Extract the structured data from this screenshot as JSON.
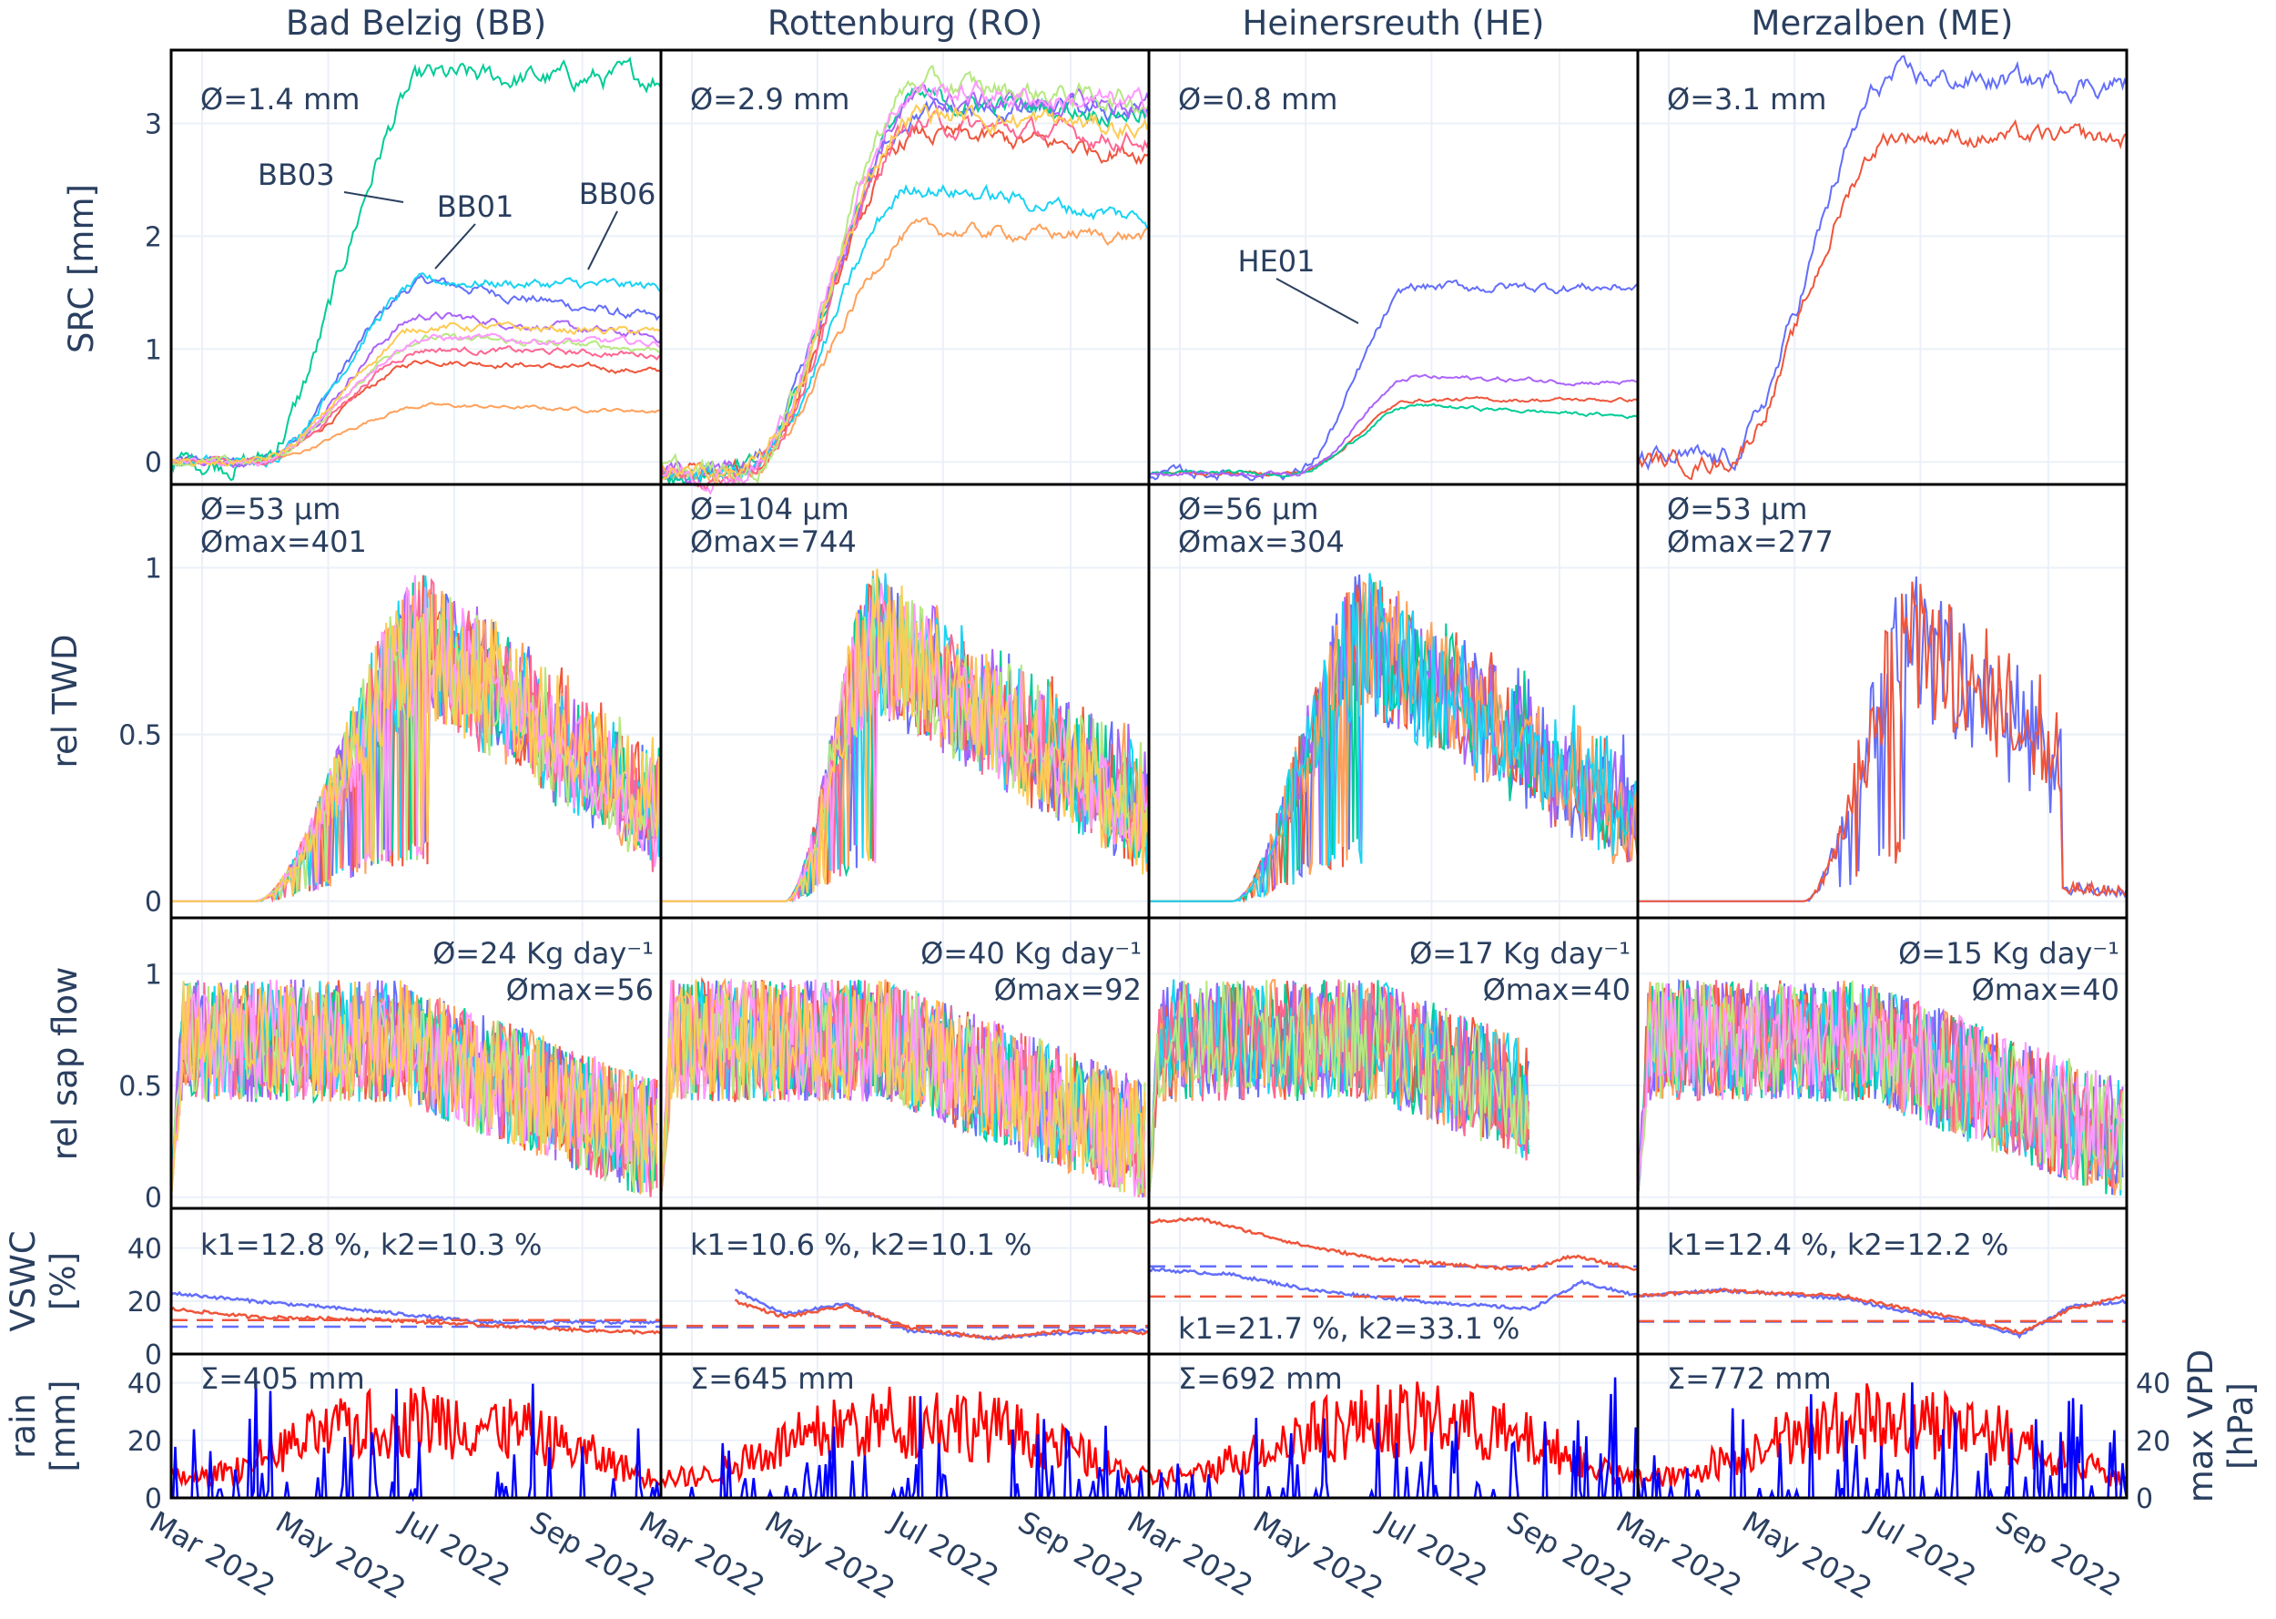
{
  "sites": [
    {
      "code": "BB",
      "title": "Bad Belzig (BB)"
    },
    {
      "code": "RO",
      "title": "Rottenburg (RO)"
    },
    {
      "code": "HE",
      "title": "Heinersreuth (HE)"
    },
    {
      "code": "ME",
      "title": "Merzalben (ME)"
    }
  ],
  "row_labels": {
    "src": [
      "SRC [mm]"
    ],
    "twd": [
      "rel TWD"
    ],
    "sap": [
      "rel sap flow"
    ],
    "vswc": [
      "VSWC",
      "[%]"
    ],
    "rain": [
      "rain",
      "[mm]"
    ],
    "vpd": [
      "max VPD",
      "[hPa]"
    ]
  },
  "annotations": {
    "src": [
      "Ø=1.4 mm",
      "Ø=2.9 mm",
      "Ø=0.8 mm",
      "Ø=3.1 mm"
    ],
    "twd": [
      [
        "Ø=53 µm",
        "Ømax=401"
      ],
      [
        "Ø=104 µm",
        "Ømax=744"
      ],
      [
        "Ø=56 µm",
        "Ømax=304"
      ],
      [
        "Ø=53 µm",
        "Ømax=277"
      ]
    ],
    "sap": [
      [
        "Ø=24 Kg day⁻¹",
        "Ømax=56"
      ],
      [
        "Ø=40 Kg day⁻¹",
        "Ømax=92"
      ],
      [
        "Ø=17 Kg day⁻¹",
        "Ømax=40"
      ],
      [
        "Ø=15 Kg day⁻¹",
        "Ømax=40"
      ]
    ],
    "vswc": [
      "k1=12.8 %, k2=10.3 %",
      "k1=10.6 %, k2=10.1 %",
      "k1=21.7 %, k2=33.1 %",
      "k1=12.4 %, k2=12.2 %"
    ],
    "rain": [
      "Σ=405 mm",
      "Σ=645 mm",
      "Σ=692 mm",
      "Σ=772 mm"
    ],
    "tree_labels": [
      "BB03",
      "BB01",
      "BB06",
      "HE01"
    ]
  },
  "x_ticks": [
    "Mar 2022",
    "May 2022",
    "Jul 2022",
    "Sep 2022"
  ],
  "colors": {
    "palette": [
      "#636efa",
      "#EF553B",
      "#00cc96",
      "#ab63fa",
      "#FFA15A",
      "#19d3f3",
      "#FF6692",
      "#B6E880",
      "#FF97FF",
      "#FECB52"
    ],
    "vswc_k1": "#EF553B",
    "vswc_k2": "#636efa",
    "rain": "#ff0000",
    "vpd": "#0000ff",
    "axis": "#2a3f5f",
    "grid": "#ebf0f8"
  },
  "chart_data": {
    "type": "line",
    "x_range": [
      "2022-02-25",
      "2022-10-20"
    ],
    "rows": [
      {
        "key": "src",
        "ylabel": "SRC [mm]",
        "yticks": [
          0,
          1,
          2,
          3
        ],
        "ylim": [
          -0.2,
          3.65
        ]
      },
      {
        "key": "twd",
        "ylabel": "rel TWD",
        "yticks": [
          0,
          0.5,
          1
        ],
        "ylim": [
          -0.05,
          1.25
        ]
      },
      {
        "key": "sap",
        "ylabel": "rel sap flow",
        "yticks": [
          0,
          0.5,
          1
        ],
        "ylim": [
          -0.05,
          1.25
        ]
      },
      {
        "key": "vswc",
        "ylabel": "VSWC [%]",
        "yticks": [
          0,
          20,
          40
        ],
        "ylim": [
          0,
          55
        ]
      },
      {
        "key": "rain",
        "ylabel": "rain [mm]",
        "y2label": "max VPD [hPa]",
        "yticks": [
          0,
          20,
          40
        ],
        "ylim": [
          0,
          50
        ]
      }
    ],
    "src_final": [
      [
        1.25,
        0.8,
        3.4,
        1.1,
        0.45,
        1.55,
        0.95,
        1.0,
        1.05,
        1.15
      ],
      [
        3.1,
        2.75,
        3.1,
        3.15,
        2.0,
        2.15,
        2.85,
        3.2,
        3.15,
        2.95
      ],
      [
        1.55,
        0.55,
        0.4,
        0.7
      ],
      [
        3.35,
        2.85
      ]
    ],
    "src_peak": [
      [
        1.6,
        0.9,
        3.4,
        1.3,
        0.5,
        1.6,
        1.0,
        1.1,
        1.1,
        1.2
      ],
      [
        3.1,
        2.9,
        3.2,
        3.2,
        2.05,
        2.45,
        3.0,
        3.35,
        3.3,
        3.1
      ],
      [
        1.55,
        0.55,
        0.5,
        0.75
      ],
      [
        3.4,
        2.9
      ]
    ],
    "src_trees": [
      10,
      10,
      4,
      2
    ],
    "twd_trees": [
      10,
      10,
      6,
      2
    ],
    "sap_trees": [
      10,
      10,
      8,
      9
    ],
    "vswc": [
      {
        "k1": 12.8,
        "k2": 10.3,
        "series_k1": [
          [
            0,
            17
          ],
          [
            40,
            14
          ],
          [
            100,
            13
          ],
          [
            150,
            11
          ],
          [
            200,
            9
          ],
          [
            237,
            8
          ]
        ],
        "series_k2": [
          [
            0,
            23
          ],
          [
            40,
            20
          ],
          [
            100,
            16
          ],
          [
            150,
            12
          ],
          [
            200,
            12
          ],
          [
            237,
            12
          ]
        ]
      },
      {
        "k1": 10.6,
        "k2": 10.1,
        "series_k1": [
          [
            36,
            20
          ],
          [
            60,
            14
          ],
          [
            90,
            18
          ],
          [
            120,
            10
          ],
          [
            160,
            6
          ],
          [
            200,
            9
          ],
          [
            237,
            8
          ]
        ],
        "series_k2": [
          [
            36,
            24
          ],
          [
            60,
            15
          ],
          [
            90,
            19
          ],
          [
            120,
            9
          ],
          [
            160,
            6
          ],
          [
            200,
            8
          ],
          [
            237,
            9
          ]
        ]
      },
      {
        "k1": 21.7,
        "k2": 33.1,
        "series_k1": [
          [
            0,
            50
          ],
          [
            25,
            51
          ],
          [
            50,
            46
          ],
          [
            75,
            41
          ],
          [
            110,
            36
          ],
          [
            160,
            33
          ],
          [
            185,
            32
          ],
          [
            205,
            37
          ],
          [
            237,
            32
          ]
        ],
        "series_k2": [
          [
            0,
            32
          ],
          [
            40,
            30
          ],
          [
            80,
            24
          ],
          [
            130,
            20
          ],
          [
            185,
            17
          ],
          [
            210,
            27
          ],
          [
            237,
            22
          ]
        ]
      },
      {
        "k1": 12.4,
        "k2": 12.2,
        "series_k1": [
          [
            0,
            22
          ],
          [
            40,
            24
          ],
          [
            100,
            22
          ],
          [
            130,
            17
          ],
          [
            160,
            13
          ],
          [
            185,
            8
          ],
          [
            210,
            17
          ],
          [
            237,
            22
          ]
        ],
        "series_k2": [
          [
            0,
            22
          ],
          [
            40,
            24
          ],
          [
            100,
            21
          ],
          [
            130,
            16
          ],
          [
            160,
            12
          ],
          [
            185,
            7
          ],
          [
            210,
            18
          ],
          [
            237,
            20
          ]
        ]
      }
    ],
    "rain_totals_mm": [
      405,
      645,
      692,
      772
    ]
  }
}
